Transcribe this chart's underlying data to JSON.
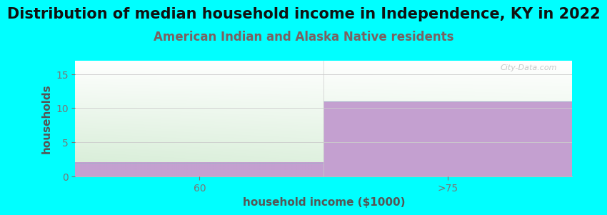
{
  "title": "Distribution of median household income in Independence, KY in 2022",
  "subtitle": "American Indian and Alaska Native residents",
  "xlabel": "household income ($1000)",
  "ylabel": "households",
  "background_color": "#00FFFF",
  "categories": [
    "60",
    ">75"
  ],
  "values": [
    2,
    11
  ],
  "ylim": [
    0,
    17
  ],
  "yticks": [
    0,
    5,
    10,
    15
  ],
  "green_color_bottom": "#d4ecd4",
  "green_color_top": "#f5fbf5",
  "purple_color": "#c4a0d0",
  "title_fontsize": 15,
  "subtitle_fontsize": 12,
  "subtitle_color": "#7b6060",
  "xlabel_color": "#555555",
  "ylabel_color": "#555555",
  "label_fontsize": 11,
  "tick_fontsize": 10,
  "watermark": "City-Data.com",
  "tick_color": "#777777"
}
